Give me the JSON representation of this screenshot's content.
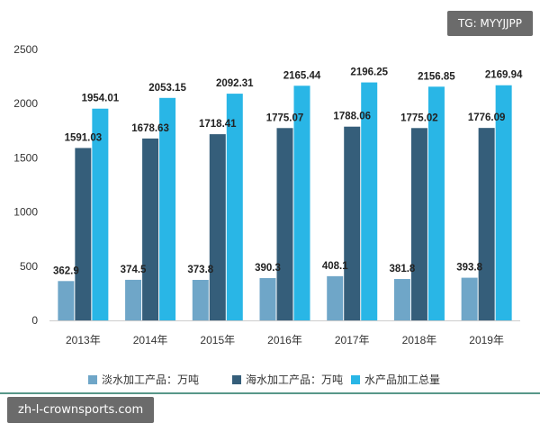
{
  "chart_data": {
    "type": "bar",
    "categories": [
      "2013年",
      "2014年",
      "2015年",
      "2016年",
      "2017年",
      "2018年",
      "2019年"
    ],
    "series": [
      {
        "name": "淡水加工产品：万吨",
        "values": [
          362.9,
          374.5,
          373.8,
          390.3,
          408.1,
          381.8,
          393.8
        ],
        "labels": [
          "362.9",
          "374.5",
          "373.8",
          "390.3",
          "408.1",
          "381.8",
          "393.8"
        ]
      },
      {
        "name": "海水加工产品：万吨",
        "values": [
          1591.03,
          1678.63,
          1718.41,
          1775.07,
          1788.06,
          1775.02,
          1776.09
        ],
        "labels": [
          "1591.03",
          "1678.63",
          "1718.41",
          "1775.07",
          "1788.06",
          "1775.02",
          "1776.09"
        ]
      },
      {
        "name": "水产品加工总量",
        "values": [
          1954.01,
          2053.15,
          2092.31,
          2165.44,
          2196.25,
          2156.85,
          2169.94
        ],
        "labels": [
          "1954.01",
          "2053.15",
          "2092.31",
          "2165.44",
          "2196.25",
          "2156.85",
          "2169.94"
        ]
      }
    ],
    "yticks": [
      "0",
      "500",
      "1000",
      "1500",
      "2000",
      "2500"
    ],
    "ylim": [
      0,
      2500
    ],
    "title": "",
    "xlabel": "",
    "ylabel": "",
    "grid": false,
    "legend_position": "bottom",
    "colors": [
      "#6fa6c8",
      "#355e7a",
      "#29b6e6"
    ]
  },
  "watermarks": {
    "top": "TG: MYYJJPP",
    "bottom": "zh-l-crownsports.com"
  }
}
